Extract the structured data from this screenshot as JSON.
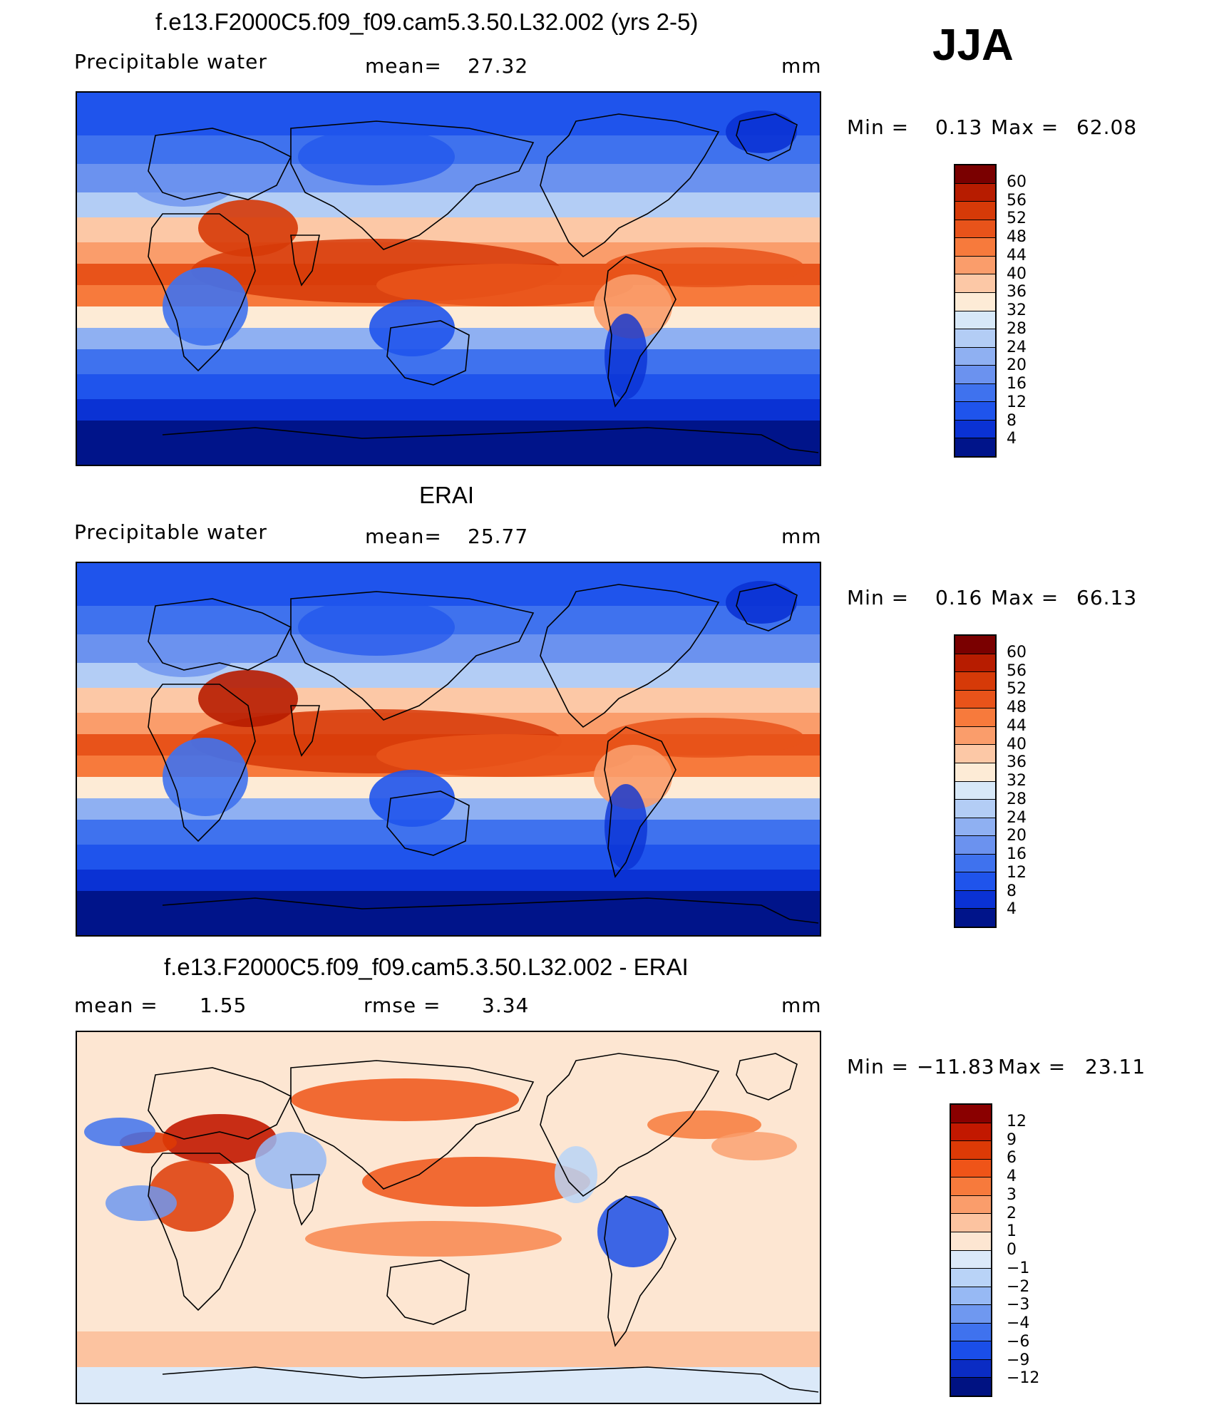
{
  "season": "JJA",
  "panels": [
    {
      "title": "f.e13.F2000C5.f09_f09.cam5.3.50.L32.002 (yrs 2-5)",
      "left_label": "Precipitable  water",
      "center_label": "mean=",
      "center_value": "27.32",
      "units": "mm",
      "stats_min_label": "Min  =",
      "stats_min": "0.13",
      "stats_max_label": "Max  =",
      "stats_max": "62.08",
      "kind": "model",
      "colorbar": {
        "levels": [
          "60",
          "56",
          "52",
          "48",
          "44",
          "40",
          "36",
          "32",
          "28",
          "24",
          "20",
          "16",
          "12",
          "8",
          "4"
        ],
        "colors": [
          "#7a0000",
          "#b71c00",
          "#d63a08",
          "#e8531a",
          "#f77a3c",
          "#fa9d6b",
          "#fcc8a6",
          "#fdebd6",
          "#d7e8f8",
          "#b3cdf5",
          "#8fb0f2",
          "#6b92ef",
          "#3f72ee",
          "#1f54ec",
          "#0a32d4",
          "#00148a"
        ]
      }
    },
    {
      "title": "ERAI",
      "left_label": "Precipitable  water",
      "center_label": "mean=",
      "center_value": "25.77",
      "units": "mm",
      "stats_min_label": "Min  =",
      "stats_min": "0.16",
      "stats_max_label": "Max  =",
      "stats_max": "66.13",
      "kind": "obs",
      "colorbar": {
        "levels": [
          "60",
          "56",
          "52",
          "48",
          "44",
          "40",
          "36",
          "32",
          "28",
          "24",
          "20",
          "16",
          "12",
          "8",
          "4"
        ],
        "colors": [
          "#7a0000",
          "#b71c00",
          "#d63a08",
          "#e8531a",
          "#f77a3c",
          "#fa9d6b",
          "#fcc8a6",
          "#fdebd6",
          "#d7e8f8",
          "#b3cdf5",
          "#8fb0f2",
          "#6b92ef",
          "#3f72ee",
          "#1f54ec",
          "#0a32d4",
          "#00148a"
        ]
      }
    },
    {
      "title": "f.e13.F2000C5.f09_f09.cam5.3.50.L32.002 - ERAI",
      "left_label": "mean  =",
      "left_value": "1.55",
      "center_label": "rmse  =",
      "center_value": "3.34",
      "units": "mm",
      "stats_min_label": "Min  =",
      "stats_min": "−11.83",
      "stats_max_label": "Max  =",
      "stats_max": "23.11",
      "kind": "diff",
      "colorbar": {
        "levels": [
          "12",
          "9",
          "6",
          "4",
          "3",
          "2",
          "1",
          "0",
          "−1",
          "−2",
          "−3",
          "−4",
          "−6",
          "−9",
          "−12"
        ],
        "colors": [
          "#8a0000",
          "#c21800",
          "#dd3a06",
          "#ef5418",
          "#f77a3c",
          "#fa9d6b",
          "#fcc3a0",
          "#fde6d2",
          "#dbe9f9",
          "#b9d3f7",
          "#97b9f4",
          "#6f98f0",
          "#3f72ee",
          "#1a4ee9",
          "#0a2cc4",
          "#001282"
        ]
      }
    }
  ]
}
